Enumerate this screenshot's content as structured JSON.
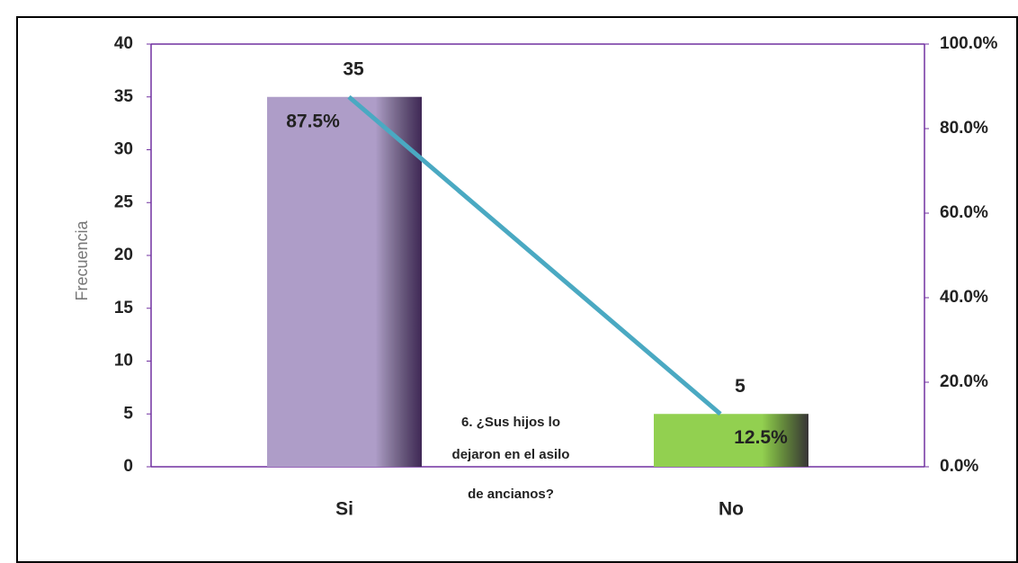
{
  "chart_data": {
    "type": "bar",
    "y_label": "Frecuencia",
    "annotation": [
      "6. ¿Sus hijos lo",
      "dejaron en el asilo",
      "de ancianos?"
    ],
    "categories": [
      "Si",
      "No"
    ],
    "series": [
      {
        "type": "bar",
        "colors": [
          "#ae9dc8",
          "#92d050"
        ],
        "values": [
          35,
          5
        ]
      },
      {
        "type": "line",
        "axis": "y2",
        "color": "#4aa9c2",
        "values": [
          87.5,
          12.5
        ],
        "value_labels": [
          "87.5%",
          "12.5%"
        ]
      }
    ],
    "ylim": [
      0,
      40
    ],
    "yticks": [
      0,
      5,
      10,
      15,
      20,
      25,
      30,
      35,
      40
    ],
    "y2lim": [
      0,
      100
    ],
    "y2ticks": [
      {
        "value": 0,
        "label": "0.0%"
      },
      {
        "value": 20,
        "label": "20.0%"
      },
      {
        "value": 40,
        "label": "40.0%"
      },
      {
        "value": 60,
        "label": "60.0%"
      },
      {
        "value": 80,
        "label": "80.0%"
      },
      {
        "value": 100,
        "label": "100.0%"
      }
    ],
    "grid": false
  }
}
